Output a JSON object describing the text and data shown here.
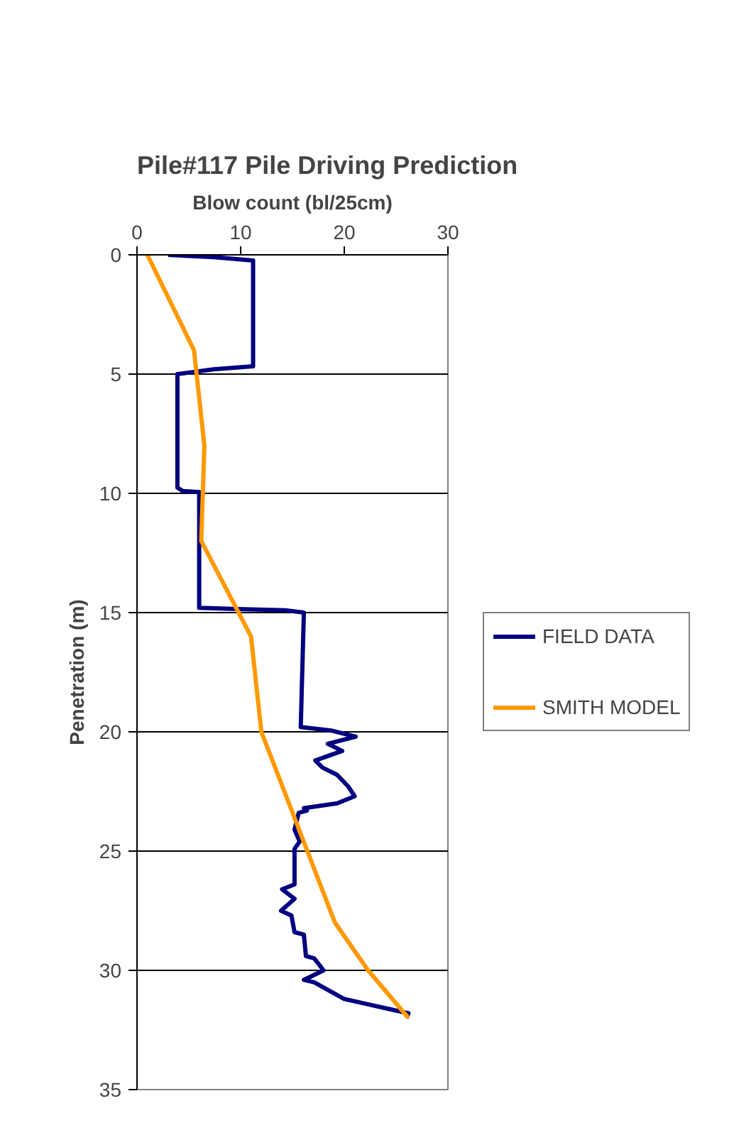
{
  "chart_data": {
    "type": "line",
    "title": "Pile#117 Pile Driving Prediction",
    "xlabel": "Blow count (bl/25cm)",
    "ylabel": "Penetration (m)",
    "xlim": [
      0,
      30
    ],
    "xticks": [
      0,
      10,
      20,
      30
    ],
    "ylim": [
      35,
      0
    ],
    "yticks": [
      0,
      5,
      10,
      15,
      20,
      25,
      30,
      35
    ],
    "grid": "y",
    "legend": "right",
    "marker": "none",
    "line_style": "solid",
    "series": [
      {
        "name": "FIELD DATA",
        "color": "#000080",
        "x": [
          3,
          7.4,
          11.2,
          11.2,
          7.4,
          3.9,
          3.9,
          4.4,
          6.0,
          6.0,
          9.7,
          14.3,
          16.1,
          15.8,
          18.8,
          21.1,
          18.4,
          19.8,
          17.2,
          17.9,
          19.3,
          20.4,
          21.0,
          19.3,
          16.1,
          16.4,
          15.6,
          15.2,
          15.7,
          15.2,
          15.2,
          14.0,
          15.2,
          13.9,
          14.9,
          15.2,
          16.1,
          16.3,
          17.1,
          18.0,
          16.1,
          17.1,
          20.0,
          24.1,
          26.2,
          26.0
        ],
        "values": [
          0,
          0.1,
          0.24,
          4.67,
          4.8,
          5.0,
          9.76,
          9.9,
          9.95,
          14.8,
          14.85,
          14.9,
          15.0,
          19.8,
          19.95,
          20.2,
          20.5,
          20.8,
          21.2,
          21.5,
          21.8,
          22.3,
          22.7,
          23.0,
          23.2,
          23.3,
          23.4,
          24.1,
          24.6,
          24.9,
          26.4,
          26.6,
          27.0,
          27.5,
          27.7,
          28.4,
          28.5,
          29.4,
          29.5,
          30.0,
          30.4,
          30.5,
          31.2,
          31.6,
          31.8,
          32.0
        ]
      },
      {
        "name": "SMITH MODEL",
        "color": "#ff9900",
        "x": [
          1.0,
          5.5,
          6.5,
          6.2,
          11.0,
          12.0,
          19.1,
          22.3,
          26.2
        ],
        "values": [
          0,
          4,
          8,
          12,
          16,
          20,
          28,
          30,
          32
        ]
      }
    ]
  }
}
